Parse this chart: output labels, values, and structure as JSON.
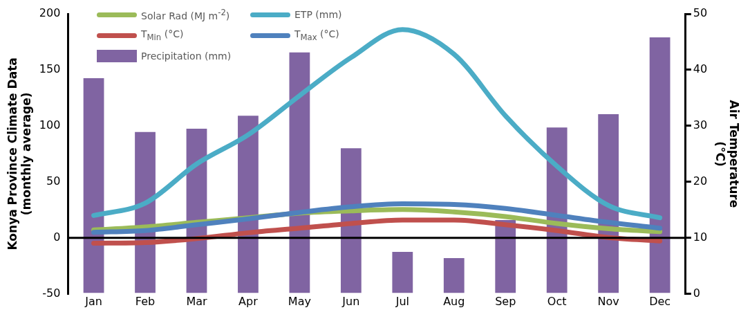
{
  "chart_data": {
    "type": "line",
    "categories": [
      "Jan",
      "Feb",
      "Mar",
      "Apr",
      "May",
      "Jun",
      "Jul",
      "Aug",
      "Sep",
      "Oct",
      "Nov",
      "Dec"
    ],
    "series": [
      {
        "name": "Solar Rad (MJ m$^{-2}$)",
        "color": "#9bbb59",
        "values": [
          7.1,
          9.8,
          13.9,
          18,
          22.2,
          24.2,
          25.3,
          23.2,
          19.1,
          12.9,
          8.3,
          5.6
        ]
      },
      {
        "name": "ETP (mm)",
        "color": "#4bacc6",
        "values": [
          20,
          31,
          66,
          92,
          127,
          161,
          186,
          164,
          109,
          64,
          29,
          18
        ]
      },
      {
        "name": "T$_{Min}$ (°C)",
        "color": "#c0504d",
        "values": [
          -4.7,
          -4.1,
          -0.6,
          4.6,
          8.7,
          12.9,
          16,
          16,
          11.8,
          6.6,
          0.4,
          -2.7
        ]
      },
      {
        "name": "T$_{Max}$ (°C)",
        "color": "#4f81bd",
        "values": [
          5,
          6.6,
          11.8,
          17,
          22.8,
          27.8,
          30.4,
          29.8,
          26.3,
          20.1,
          13.9,
          8.7
        ]
      },
      {
        "name": "Precipitation (mm)",
        "type": "bar",
        "axis": "y2",
        "color": "#8064a2",
        "values": [
          38.5,
          28.9,
          29.5,
          31.8,
          43.1,
          26,
          7.5,
          6.4,
          13.2,
          29.7,
          32.1,
          45.8
        ]
      }
    ],
    "ylabel": "Konya Province Climate Data\n(monthly average)",
    "y2label": "Air Temperature\n(°C)",
    "ylim": [
      -50,
      200
    ],
    "yticks": [
      -50,
      0,
      50,
      100,
      150,
      200
    ],
    "y2lim": [
      0,
      50
    ],
    "y2ticks": [
      0,
      10,
      20,
      30,
      40,
      50
    ],
    "ref_lines": [
      {
        "axis": "y",
        "value": 0,
        "color": "#000000"
      }
    ],
    "grid": false,
    "legend": "top left",
    "marker": "none",
    "line_style": "solid"
  }
}
